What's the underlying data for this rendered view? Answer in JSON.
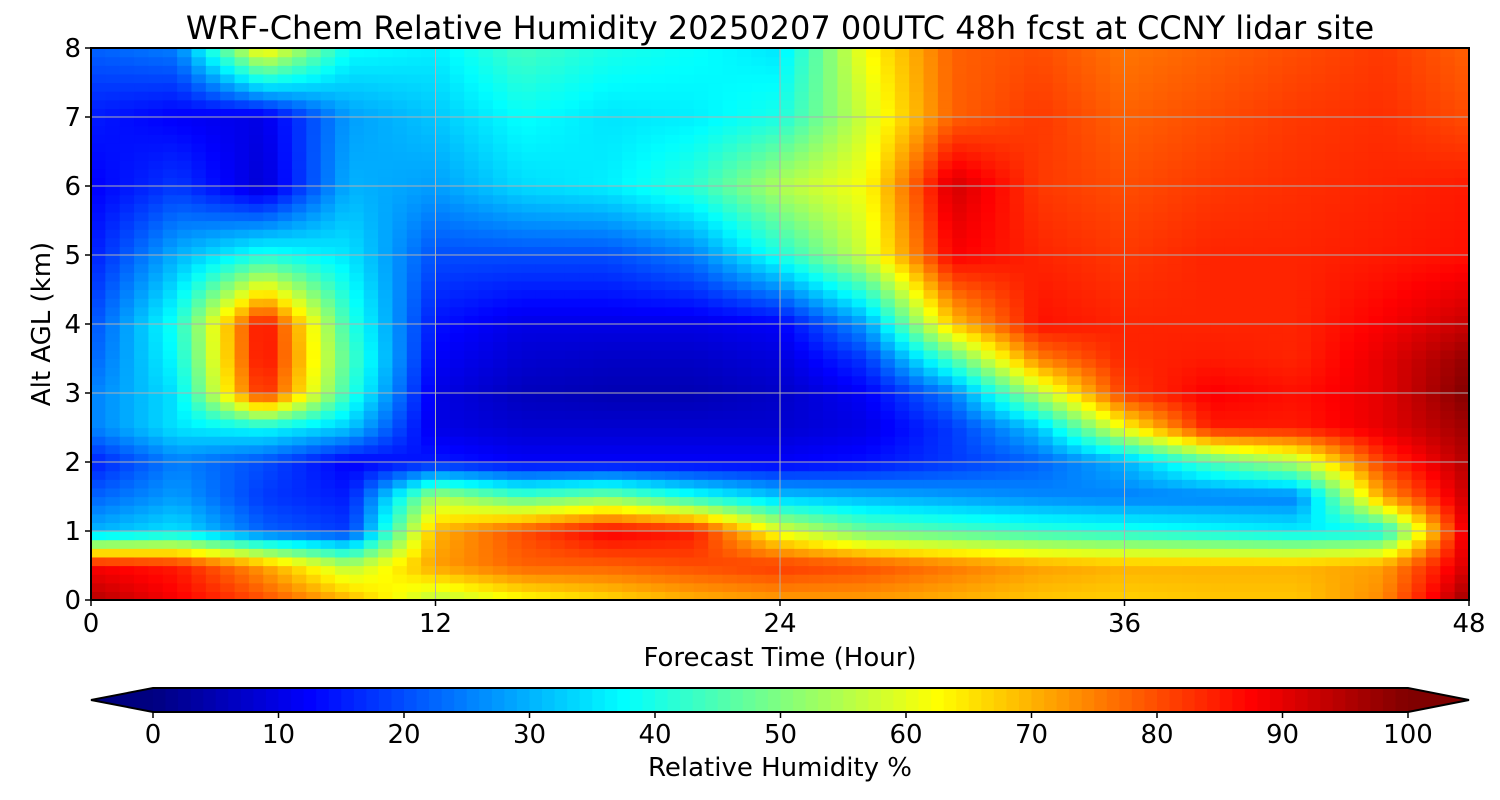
{
  "chart_data": {
    "type": "heatmap",
    "title": "WRF-Chem Relative Humidity 20250207 00UTC 48h fcst at CCNY lidar site",
    "xlabel": "Forecast Time (Hour)",
    "ylabel": "Alt AGL (km)",
    "xlim": [
      0,
      48
    ],
    "ylim": [
      0,
      8
    ],
    "xticks": [
      0,
      12,
      24,
      36,
      48
    ],
    "yticks": [
      0,
      1,
      2,
      3,
      4,
      5,
      6,
      7,
      8
    ],
    "grid": true,
    "colormap": "jet",
    "colorbar": {
      "label": "Relative Humidity %",
      "orientation": "horizontal",
      "placement": "bottom",
      "extend": "both",
      "vmin": 0,
      "vmax": 100,
      "ticks": [
        0,
        10,
        20,
        30,
        40,
        50,
        60,
        70,
        80,
        90,
        100
      ]
    },
    "x": [
      0,
      3,
      6,
      9,
      12,
      15,
      18,
      21,
      24,
      27,
      30,
      33,
      36,
      39,
      42,
      45,
      48
    ],
    "y": [
      0,
      0.5,
      1,
      1.5,
      2,
      2.5,
      3,
      3.5,
      4,
      5,
      6,
      7,
      8
    ],
    "z": [
      [
        95,
        88,
        80,
        70,
        55,
        62,
        66,
        70,
        72,
        72,
        70,
        68,
        67,
        68,
        68,
        74,
        98
      ],
      [
        88,
        85,
        72,
        55,
        72,
        78,
        78,
        80,
        82,
        80,
        76,
        72,
        70,
        70,
        70,
        72,
        92
      ],
      [
        30,
        35,
        22,
        18,
        70,
        80,
        88,
        85,
        60,
        48,
        45,
        42,
        40,
        38,
        36,
        38,
        92
      ],
      [
        22,
        28,
        18,
        15,
        55,
        45,
        50,
        40,
        32,
        30,
        28,
        26,
        25,
        25,
        25,
        72,
        93
      ],
      [
        15,
        25,
        20,
        12,
        15,
        12,
        12,
        12,
        12,
        14,
        18,
        22,
        30,
        45,
        55,
        82,
        95
      ],
      [
        25,
        35,
        38,
        32,
        10,
        8,
        8,
        8,
        8,
        10,
        18,
        32,
        62,
        85,
        85,
        90,
        97
      ],
      [
        25,
        35,
        85,
        42,
        10,
        6,
        5,
        5,
        7,
        12,
        25,
        55,
        82,
        88,
        86,
        90,
        100
      ],
      [
        22,
        38,
        88,
        45,
        12,
        8,
        7,
        7,
        9,
        18,
        45,
        75,
        84,
        85,
        84,
        90,
        98
      ],
      [
        20,
        40,
        88,
        42,
        14,
        10,
        10,
        10,
        12,
        28,
        68,
        86,
        84,
        84,
        84,
        88,
        93
      ],
      [
        15,
        30,
        40,
        35,
        20,
        20,
        20,
        25,
        40,
        58,
        88,
        84,
        82,
        84,
        84,
        85,
        86
      ],
      [
        12,
        18,
        8,
        30,
        28,
        34,
        36,
        42,
        55,
        62,
        92,
        82,
        80,
        82,
        83,
        84,
        85
      ],
      [
        15,
        12,
        10,
        28,
        32,
        38,
        35,
        36,
        40,
        58,
        78,
        82,
        78,
        80,
        82,
        83,
        80
      ],
      [
        22,
        25,
        65,
        38,
        36,
        44,
        40,
        38,
        35,
        62,
        78,
        80,
        76,
        78,
        80,
        82,
        78
      ]
    ]
  }
}
